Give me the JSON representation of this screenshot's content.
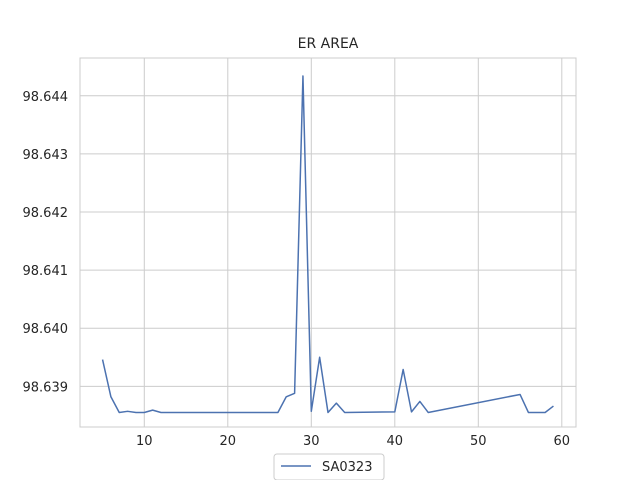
{
  "chart_data": {
    "type": "line",
    "title": "ER AREA",
    "xlabel": "",
    "ylabel": "",
    "xlim": [
      2.3,
      61.7
    ],
    "ylim": [
      98.6383,
      98.64465
    ],
    "xticks": [
      10,
      20,
      30,
      40,
      50,
      60
    ],
    "yticks": [
      98.639,
      98.64,
      98.641,
      98.642,
      98.643,
      98.644
    ],
    "ytick_labels": [
      "98.639",
      "98.640",
      "98.641",
      "98.642",
      "98.643",
      "98.644"
    ],
    "grid": true,
    "legend_placement": "bottom-center",
    "series": [
      {
        "name": "SA0323",
        "color": "#4c72b0",
        "x": [
          5,
          6,
          7,
          8,
          9,
          10,
          11,
          12,
          26,
          27,
          28,
          29,
          30,
          31,
          32,
          33,
          34,
          40,
          41,
          42,
          43,
          44,
          55,
          56,
          57,
          58,
          59
        ],
        "y": [
          98.63946,
          98.63882,
          98.63855,
          98.63857,
          98.63855,
          98.63855,
          98.63859,
          98.63855,
          98.63855,
          98.63882,
          98.63888,
          98.64434,
          98.63857,
          98.6395,
          98.63855,
          98.63871,
          98.63855,
          98.63856,
          98.63929,
          98.63856,
          98.63874,
          98.63855,
          98.63886,
          98.63855,
          98.63855,
          98.63855,
          98.63866
        ]
      }
    ]
  }
}
